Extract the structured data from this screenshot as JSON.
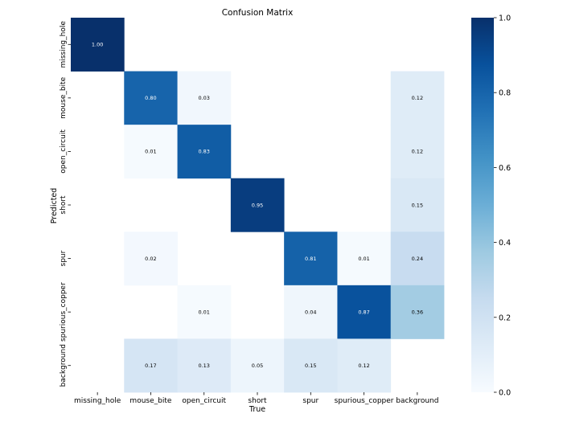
{
  "chart_data": {
    "type": "heatmap",
    "title": "Confusion Matrix",
    "xlabel": "True",
    "ylabel": "Predicted",
    "x_categories": [
      "missing_hole",
      "mouse_bite",
      "open_circuit",
      "short",
      "spur",
      "spurious_copper",
      "background"
    ],
    "y_categories": [
      "missing_hole",
      "mouse_bite",
      "open_circuit",
      "short",
      "spur",
      "spurious_copper",
      "background"
    ],
    "values": [
      [
        1.0,
        null,
        null,
        null,
        null,
        null,
        null
      ],
      [
        null,
        0.8,
        0.03,
        null,
        null,
        null,
        0.12
      ],
      [
        null,
        0.01,
        0.83,
        null,
        null,
        null,
        0.12
      ],
      [
        null,
        null,
        null,
        0.95,
        null,
        null,
        0.15
      ],
      [
        null,
        0.02,
        null,
        null,
        0.81,
        0.01,
        0.24
      ],
      [
        null,
        null,
        0.01,
        null,
        0.04,
        0.87,
        0.36
      ],
      [
        null,
        0.17,
        0.13,
        0.05,
        0.15,
        0.12,
        null
      ]
    ],
    "value_format": "0.00",
    "colormap": "Blues",
    "vmin": 0.0,
    "vmax": 1.0,
    "colorbar_ticks": [
      "0.0",
      "0.2",
      "0.4",
      "0.6",
      "0.8",
      "1.0"
    ],
    "colorbar_tick_values": [
      0.0,
      0.2,
      0.4,
      0.6,
      0.8,
      1.0
    ],
    "grid": false,
    "legend": "colorbar-right"
  }
}
